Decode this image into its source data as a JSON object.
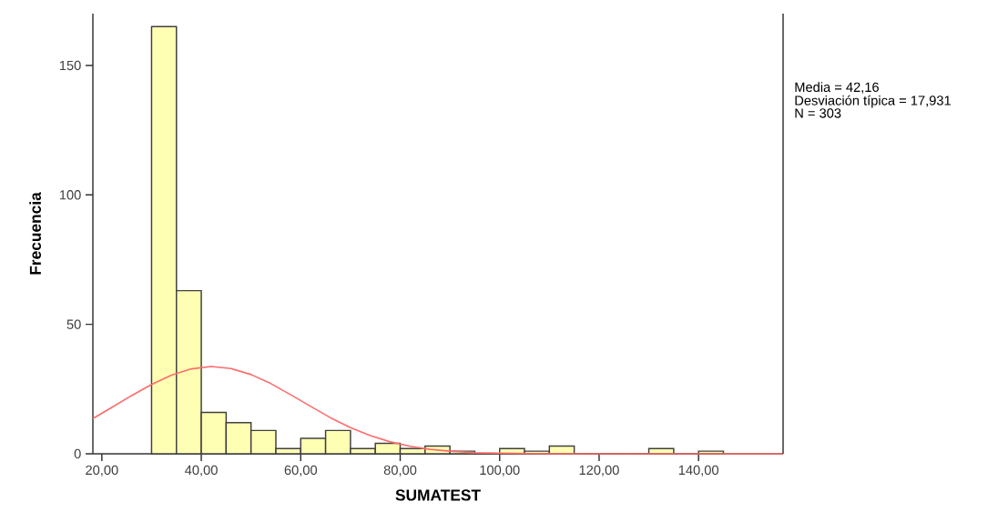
{
  "chart_data": {
    "type": "histogram",
    "xlabel": "SUMATEST",
    "ylabel": "Frecuencia",
    "bins": [
      30,
      35,
      40,
      45,
      50,
      55,
      60,
      65,
      70,
      75,
      80,
      85,
      90,
      95,
      100,
      105,
      110,
      115,
      120,
      125,
      130,
      135,
      140,
      145
    ],
    "values": [
      165,
      63,
      16,
      12,
      9,
      2,
      6,
      9,
      2,
      4,
      2,
      3,
      1,
      0,
      2,
      1,
      3,
      0,
      0,
      0,
      2,
      0,
      1
    ],
    "color": "#ffffb4",
    "series": [
      {
        "type": "line",
        "color": "#ff6b6b",
        "x": [
          18.2,
          22,
          26,
          30,
          34,
          38,
          42,
          46,
          50,
          54,
          58,
          62,
          66,
          70,
          74,
          78,
          82,
          86,
          90,
          95,
          100,
          110,
          157
        ],
        "values": [
          13.6,
          17.9,
          22.5,
          26.8,
          30.4,
          32.8,
          33.7,
          32.9,
          30.6,
          27.1,
          22.8,
          18.3,
          13.9,
          10.1,
          7.0,
          4.6,
          2.9,
          1.7,
          1.0,
          0.4,
          0.2,
          0,
          0
        ]
      }
    ],
    "xlim": [
      18.2,
      157
    ],
    "ylim": [
      0,
      170
    ],
    "xticks": [
      {
        "value": 20,
        "label": "20,00"
      },
      {
        "value": 40,
        "label": "40,00"
      },
      {
        "value": 60,
        "label": "60,00"
      },
      {
        "value": 80,
        "label": "80,00"
      },
      {
        "value": 100,
        "label": "100,00"
      },
      {
        "value": 120,
        "label": "120,00"
      },
      {
        "value": 140,
        "label": "140,00"
      }
    ],
    "yticks": [
      0,
      50,
      100,
      150
    ],
    "grid": false,
    "annotations": [
      "Media = 42,16",
      "Desviación típica = 17,931",
      "N = 303"
    ]
  }
}
